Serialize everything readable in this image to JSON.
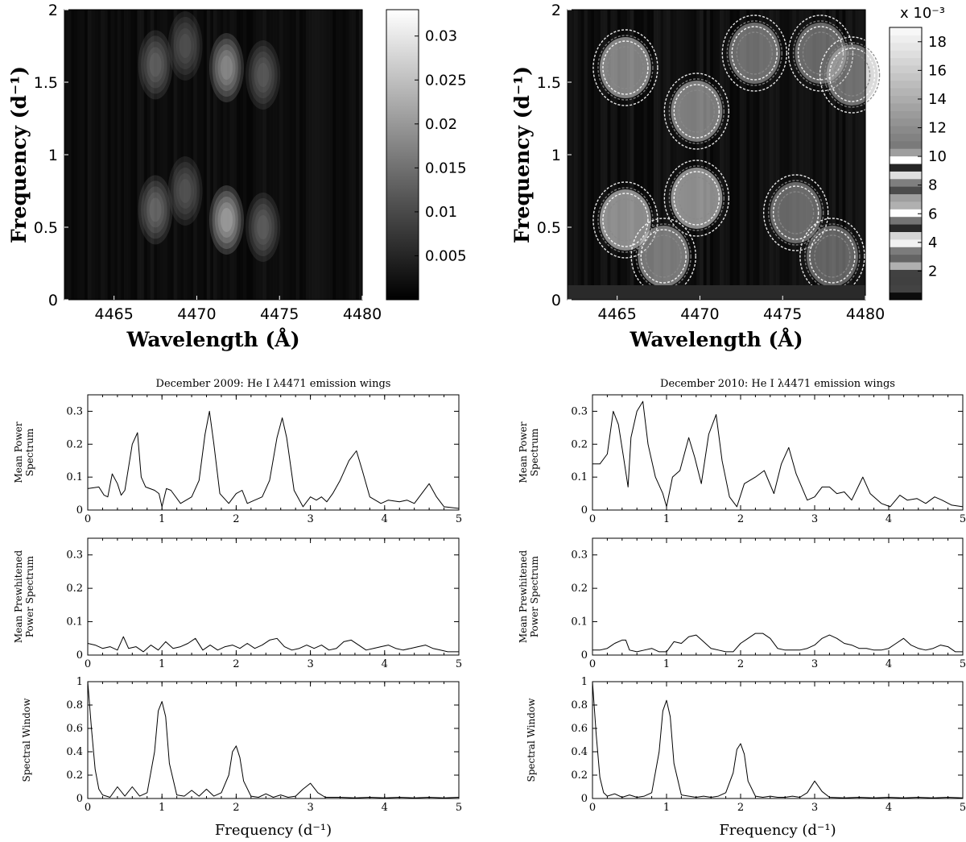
{
  "chart_data": [
    {
      "id": "heatmap_left",
      "type": "heatmap",
      "xlabel": "Wavelength (Å)",
      "ylabel": "Frequency (d⁻¹)",
      "xlim": [
        4462,
        4480
      ],
      "ylim": [
        0,
        2
      ],
      "xticks": [
        "4465",
        "4470",
        "4475",
        "4480"
      ],
      "yticks": [
        "0",
        "0.5",
        "1",
        "1.5",
        "2"
      ],
      "colorbar": {
        "range": [
          0,
          0.033
        ],
        "ticks": [
          "0.005",
          "0.01",
          "0.015",
          "0.02",
          "0.025",
          "0.03"
        ],
        "scale_note": ""
      },
      "features": [
        {
          "wavelength": 4467.5,
          "freq": 1.62,
          "power": 0.014
        },
        {
          "wavelength": 4467.5,
          "freq": 0.62,
          "power": 0.016
        },
        {
          "wavelength": 4471.8,
          "freq": 1.6,
          "power": 0.026
        },
        {
          "wavelength": 4471.8,
          "freq": 0.55,
          "power": 0.032
        },
        {
          "wavelength": 4474.0,
          "freq": 1.55,
          "power": 0.012
        },
        {
          "wavelength": 4474.0,
          "freq": 0.5,
          "power": 0.013
        },
        {
          "wavelength": 4469.3,
          "freq": 1.75,
          "power": 0.01
        },
        {
          "wavelength": 4469.3,
          "freq": 0.75,
          "power": 0.011
        }
      ]
    },
    {
      "id": "heatmap_right",
      "type": "heatmap",
      "xlabel": "Wavelength (Å)",
      "ylabel": "Frequency (d⁻¹)",
      "xlim": [
        4462,
        4480
      ],
      "ylim": [
        0,
        2
      ],
      "xticks": [
        "4465",
        "4470",
        "4475",
        "4480"
      ],
      "yticks": [
        "0",
        "0.5",
        "1",
        "1.5",
        "2"
      ],
      "colorbar": {
        "range": [
          0,
          19
        ],
        "ticks": [
          "2",
          "4",
          "6",
          "8",
          "10",
          "12",
          "14",
          "16",
          "18"
        ],
        "scale_note": "x 10⁻³"
      },
      "features": [
        {
          "wavelength": 4465.5,
          "freq": 1.6,
          "power": 16
        },
        {
          "wavelength": 4465.5,
          "freq": 0.55,
          "power": 18
        },
        {
          "wavelength": 4469.8,
          "freq": 1.3,
          "power": 15
        },
        {
          "wavelength": 4469.8,
          "freq": 0.7,
          "power": 18
        },
        {
          "wavelength": 4467.8,
          "freq": 0.3,
          "power": 14
        },
        {
          "wavelength": 4473.3,
          "freq": 1.7,
          "power": 12
        },
        {
          "wavelength": 4477.3,
          "freq": 1.7,
          "power": 11
        },
        {
          "wavelength": 4479.2,
          "freq": 1.55,
          "power": 12
        },
        {
          "wavelength": 4475.8,
          "freq": 0.6,
          "power": 11
        },
        {
          "wavelength": 4478.0,
          "freq": 0.3,
          "power": 10
        }
      ]
    },
    {
      "id": "dec2009",
      "type": "line",
      "title": "December 2009: He I λ4471 emission wings",
      "xlabel": "Frequency (d⁻¹)",
      "xlim": [
        0,
        5
      ],
      "xticks": [
        "0",
        "1",
        "2",
        "3",
        "4",
        "5"
      ],
      "panels": [
        {
          "ylabel": [
            "Mean Power",
            "Spectrum"
          ],
          "ylim": [
            0,
            0.35
          ],
          "yticks": [
            "0",
            "0.1",
            "0.2",
            "0.3"
          ],
          "x": [
            0,
            0.15,
            0.22,
            0.27,
            0.33,
            0.4,
            0.45,
            0.5,
            0.55,
            0.6,
            0.67,
            0.72,
            0.78,
            0.9,
            0.96,
            1.0,
            1.06,
            1.12,
            1.25,
            1.4,
            1.5,
            1.58,
            1.64,
            1.7,
            1.78,
            1.9,
            2.0,
            2.08,
            2.15,
            2.25,
            2.35,
            2.45,
            2.55,
            2.62,
            2.68,
            2.78,
            2.9,
            3.0,
            3.08,
            3.15,
            3.22,
            3.3,
            3.4,
            3.52,
            3.62,
            3.7,
            3.8,
            3.95,
            4.05,
            4.2,
            4.3,
            4.4,
            4.5,
            4.6,
            4.7,
            4.8,
            5.0
          ],
          "y": [
            0.065,
            0.07,
            0.045,
            0.04,
            0.11,
            0.08,
            0.045,
            0.06,
            0.13,
            0.2,
            0.235,
            0.1,
            0.07,
            0.06,
            0.05,
            0.01,
            0.065,
            0.06,
            0.02,
            0.04,
            0.09,
            0.23,
            0.3,
            0.2,
            0.05,
            0.02,
            0.05,
            0.06,
            0.02,
            0.03,
            0.04,
            0.09,
            0.22,
            0.28,
            0.22,
            0.06,
            0.01,
            0.04,
            0.03,
            0.04,
            0.025,
            0.05,
            0.09,
            0.15,
            0.18,
            0.12,
            0.04,
            0.02,
            0.03,
            0.025,
            0.03,
            0.02,
            0.05,
            0.08,
            0.04,
            0.01,
            0.005
          ]
        },
        {
          "ylabel": [
            "Mean Prewhitened",
            "Power Spectrum"
          ],
          "ylim": [
            0,
            0.35
          ],
          "yticks": [
            "0",
            "0.1",
            "0.2",
            "0.3"
          ],
          "x": [
            0,
            0.1,
            0.2,
            0.3,
            0.4,
            0.48,
            0.55,
            0.65,
            0.75,
            0.85,
            0.95,
            1.05,
            1.15,
            1.25,
            1.35,
            1.45,
            1.55,
            1.65,
            1.75,
            1.85,
            1.95,
            2.05,
            2.15,
            2.25,
            2.35,
            2.45,
            2.55,
            2.65,
            2.75,
            2.85,
            2.95,
            3.05,
            3.15,
            3.25,
            3.35,
            3.45,
            3.55,
            3.65,
            3.75,
            3.85,
            3.95,
            4.05,
            4.15,
            4.25,
            4.35,
            4.45,
            4.55,
            4.65,
            4.75,
            4.85,
            5.0
          ],
          "y": [
            0.035,
            0.03,
            0.02,
            0.025,
            0.015,
            0.055,
            0.02,
            0.025,
            0.01,
            0.03,
            0.015,
            0.04,
            0.02,
            0.025,
            0.035,
            0.05,
            0.015,
            0.03,
            0.015,
            0.025,
            0.03,
            0.02,
            0.035,
            0.02,
            0.03,
            0.045,
            0.05,
            0.025,
            0.015,
            0.02,
            0.03,
            0.02,
            0.03,
            0.015,
            0.02,
            0.04,
            0.045,
            0.03,
            0.015,
            0.02,
            0.025,
            0.03,
            0.02,
            0.015,
            0.02,
            0.025,
            0.03,
            0.02,
            0.015,
            0.01,
            0.01
          ]
        },
        {
          "ylabel": [
            "Spectral Window"
          ],
          "ylim": [
            0,
            1
          ],
          "yticks": [
            "0",
            "0.2",
            "0.4",
            "0.6",
            "0.8",
            "1"
          ],
          "x": [
            0,
            0.05,
            0.1,
            0.15,
            0.2,
            0.3,
            0.4,
            0.5,
            0.6,
            0.7,
            0.8,
            0.9,
            0.95,
            1.0,
            1.05,
            1.1,
            1.2,
            1.3,
            1.4,
            1.5,
            1.6,
            1.7,
            1.8,
            1.9,
            1.95,
            2.0,
            2.05,
            2.1,
            2.2,
            2.3,
            2.4,
            2.5,
            2.6,
            2.7,
            2.8,
            2.9,
            3.0,
            3.1,
            3.2,
            3.4,
            3.6,
            3.8,
            4.0,
            4.2,
            4.4,
            4.6,
            4.8,
            5.0
          ],
          "y": [
            1.0,
            0.6,
            0.25,
            0.08,
            0.03,
            0.01,
            0.1,
            0.02,
            0.1,
            0.02,
            0.05,
            0.4,
            0.75,
            0.83,
            0.7,
            0.3,
            0.03,
            0.02,
            0.07,
            0.02,
            0.08,
            0.02,
            0.05,
            0.2,
            0.4,
            0.45,
            0.35,
            0.15,
            0.02,
            0.01,
            0.04,
            0.01,
            0.03,
            0.01,
            0.02,
            0.08,
            0.13,
            0.05,
            0.01,
            0.01,
            0.005,
            0.01,
            0.005,
            0.01,
            0.005,
            0.01,
            0.005,
            0.01
          ]
        }
      ]
    },
    {
      "id": "dec2010",
      "type": "line",
      "title": "December 2010: He I λ4471 emission wings",
      "xlabel": "Frequency (d⁻¹)",
      "xlim": [
        0,
        5
      ],
      "xticks": [
        "0",
        "1",
        "2",
        "3",
        "4",
        "5"
      ],
      "panels": [
        {
          "ylabel": [
            "Mean Power",
            "Spectrum"
          ],
          "ylim": [
            0,
            0.35
          ],
          "yticks": [
            "0",
            "0.1",
            "0.2",
            "0.3"
          ],
          "x": [
            0,
            0.1,
            0.2,
            0.28,
            0.35,
            0.42,
            0.48,
            0.52,
            0.6,
            0.68,
            0.75,
            0.85,
            0.95,
            1.0,
            1.08,
            1.18,
            1.3,
            1.38,
            1.47,
            1.57,
            1.67,
            1.75,
            1.85,
            1.95,
            2.05,
            2.2,
            2.32,
            2.45,
            2.55,
            2.65,
            2.75,
            2.9,
            3.0,
            3.1,
            3.2,
            3.3,
            3.4,
            3.5,
            3.65,
            3.75,
            3.9,
            4.02,
            4.15,
            4.25,
            4.38,
            4.5,
            4.62,
            4.72,
            4.85,
            5.0
          ],
          "y": [
            0.14,
            0.14,
            0.17,
            0.3,
            0.26,
            0.16,
            0.07,
            0.22,
            0.3,
            0.33,
            0.2,
            0.1,
            0.05,
            0.01,
            0.1,
            0.12,
            0.22,
            0.16,
            0.08,
            0.23,
            0.29,
            0.15,
            0.04,
            0.01,
            0.08,
            0.1,
            0.12,
            0.05,
            0.14,
            0.19,
            0.11,
            0.03,
            0.04,
            0.07,
            0.07,
            0.05,
            0.055,
            0.03,
            0.1,
            0.05,
            0.02,
            0.01,
            0.045,
            0.03,
            0.035,
            0.02,
            0.04,
            0.03,
            0.015,
            0.01
          ]
        },
        {
          "ylabel": [
            "Mean Prewhitened",
            "Power Spectrum"
          ],
          "ylim": [
            0,
            0.35
          ],
          "yticks": [
            "0",
            "0.1",
            "0.2",
            "0.3"
          ],
          "x": [
            0,
            0.1,
            0.2,
            0.3,
            0.4,
            0.45,
            0.5,
            0.6,
            0.7,
            0.8,
            0.9,
            1.0,
            1.1,
            1.2,
            1.3,
            1.4,
            1.5,
            1.6,
            1.7,
            1.8,
            1.9,
            2.0,
            2.1,
            2.2,
            2.3,
            2.4,
            2.5,
            2.6,
            2.7,
            2.8,
            2.9,
            3.0,
            3.1,
            3.2,
            3.3,
            3.4,
            3.5,
            3.6,
            3.7,
            3.8,
            3.9,
            4.0,
            4.1,
            4.2,
            4.3,
            4.4,
            4.5,
            4.6,
            4.7,
            4.8,
            4.9,
            5.0
          ],
          "y": [
            0.015,
            0.015,
            0.02,
            0.035,
            0.045,
            0.045,
            0.015,
            0.01,
            0.015,
            0.02,
            0.01,
            0.01,
            0.04,
            0.035,
            0.055,
            0.06,
            0.04,
            0.02,
            0.015,
            0.01,
            0.01,
            0.035,
            0.05,
            0.065,
            0.065,
            0.05,
            0.02,
            0.015,
            0.015,
            0.015,
            0.02,
            0.03,
            0.05,
            0.06,
            0.05,
            0.035,
            0.03,
            0.02,
            0.02,
            0.015,
            0.015,
            0.02,
            0.035,
            0.05,
            0.03,
            0.02,
            0.015,
            0.02,
            0.03,
            0.025,
            0.01,
            0.01
          ]
        },
        {
          "ylabel": [
            "Spectral Window"
          ],
          "ylim": [
            0,
            1
          ],
          "yticks": [
            "0",
            "0.2",
            "0.4",
            "0.6",
            "0.8",
            "1"
          ],
          "x": [
            0,
            0.05,
            0.1,
            0.15,
            0.2,
            0.3,
            0.4,
            0.5,
            0.6,
            0.7,
            0.8,
            0.9,
            0.95,
            1.0,
            1.05,
            1.1,
            1.2,
            1.3,
            1.4,
            1.5,
            1.6,
            1.7,
            1.8,
            1.9,
            1.95,
            2.0,
            2.05,
            2.1,
            2.2,
            2.3,
            2.4,
            2.5,
            2.6,
            2.7,
            2.8,
            2.9,
            3.0,
            3.1,
            3.2,
            3.4,
            3.6,
            3.8,
            4.0,
            4.2,
            4.4,
            4.6,
            4.8,
            5.0
          ],
          "y": [
            1.0,
            0.55,
            0.18,
            0.05,
            0.02,
            0.04,
            0.01,
            0.03,
            0.01,
            0.02,
            0.05,
            0.4,
            0.75,
            0.84,
            0.7,
            0.3,
            0.03,
            0.02,
            0.01,
            0.02,
            0.01,
            0.02,
            0.05,
            0.22,
            0.42,
            0.47,
            0.38,
            0.15,
            0.02,
            0.01,
            0.02,
            0.01,
            0.01,
            0.02,
            0.01,
            0.05,
            0.15,
            0.06,
            0.01,
            0.005,
            0.01,
            0.005,
            0.01,
            0.005,
            0.01,
            0.005,
            0.01,
            0.005
          ]
        }
      ]
    }
  ]
}
